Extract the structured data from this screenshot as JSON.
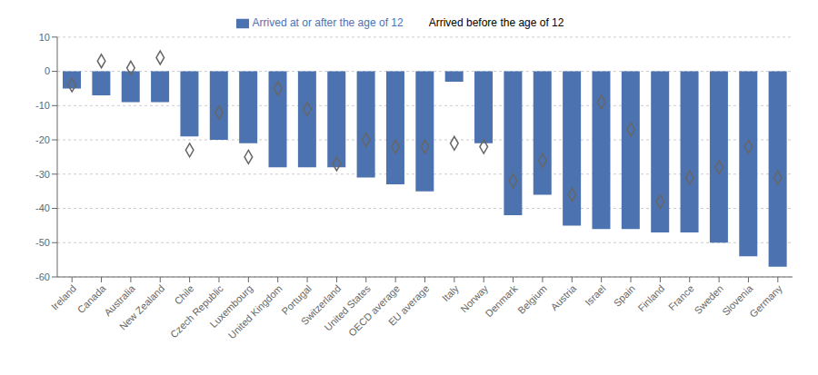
{
  "chart_data": {
    "type": "bar",
    "categories": [
      "Ireland",
      "Canada",
      "Australia",
      "New Zealand",
      "Chile",
      "Czech Republic",
      "Luxembourg",
      "United Kingdom",
      "Portugal",
      "Switzerland",
      "United States",
      "OECD average",
      "EU average",
      "Italy",
      "Norway",
      "Denmark",
      "Belgium",
      "Austria",
      "Israel",
      "Spain",
      "Finland",
      "France",
      "Sweden",
      "Slovenia",
      "Germany"
    ],
    "series": [
      {
        "name": "Arrived at or after the age of 12",
        "type": "bar",
        "color": "#4C72B0",
        "values": [
          -5,
          -7,
          -9,
          -9,
          -19,
          -20,
          -21,
          -28,
          -28,
          -28,
          -31,
          -33,
          -35,
          -3,
          -21,
          -42,
          -36,
          -45,
          -46,
          -46,
          -47,
          -47,
          -50,
          -54,
          -57
        ]
      },
      {
        "name": "Arrived before the age of 12",
        "type": "scatter",
        "marker": "diamond",
        "color": "#666666",
        "values": [
          -4,
          3,
          1,
          4,
          -23,
          -12,
          -25,
          -5,
          -11,
          -27,
          -20,
          -22,
          -22,
          -21,
          -22,
          -32,
          -26,
          -36,
          -9,
          -17,
          -38,
          -31,
          -28,
          -22,
          -31
        ]
      }
    ],
    "ylim": [
      -60,
      10
    ],
    "yticks": [
      -60,
      -50,
      -40,
      -30,
      -20,
      -10,
      0,
      10
    ],
    "grid": true,
    "legend": "top"
  }
}
